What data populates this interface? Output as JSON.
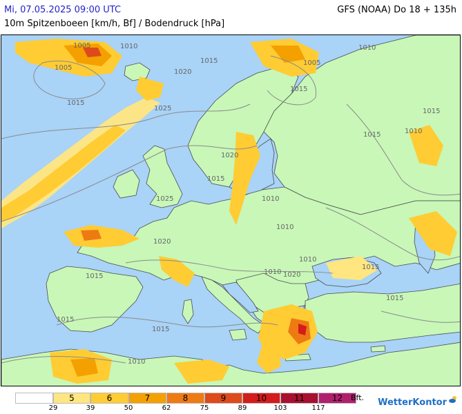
{
  "header": {
    "datetime": "Mi, 07.05.2025 09:00 UTC",
    "model": "GFS (NOAA) Do 18 + 135h",
    "product": "10m Spitzenboeen [km/h, Bf] / Bodendruck [hPa]"
  },
  "colors": {
    "sea": "#a9d3f7",
    "land": "#c8f7b8",
    "bft5": "#ffe680",
    "bft6": "#ffcc33",
    "bft7": "#f4a000",
    "bft8": "#ee7a14",
    "bft9": "#dd4a1c",
    "bft10": "#d41c1c",
    "bft11": "#a8102f",
    "bft12": "#b0206e"
  },
  "isobars": [
    "1005",
    "1010",
    "1010",
    "1005",
    "1020",
    "1015",
    "1025",
    "1015",
    "1015",
    "1005",
    "1010",
    "1015",
    "1015",
    "1010",
    "1020",
    "1015",
    "1020",
    "1025",
    "1010",
    "1020",
    "1010",
    "1015",
    "1015",
    "1010",
    "1015",
    "1015",
    "1015",
    "1010"
  ],
  "legend": {
    "classes": [
      {
        "bft": "",
        "color": "#ffffff"
      },
      {
        "bft": "5",
        "color": "#ffe680"
      },
      {
        "bft": "6",
        "color": "#ffcc33"
      },
      {
        "bft": "7",
        "color": "#f4a000"
      },
      {
        "bft": "8",
        "color": "#ee7a14"
      },
      {
        "bft": "9",
        "color": "#dd4a1c"
      },
      {
        "bft": "10",
        "color": "#d41c1c"
      },
      {
        "bft": "11",
        "color": "#a8102f"
      },
      {
        "bft": "12",
        "color": "#b0206e"
      }
    ],
    "ticks": [
      "29",
      "39",
      "50",
      "62",
      "75",
      "89",
      "103",
      "117"
    ],
    "unit": "Bft."
  },
  "brand": "WetterKontor"
}
